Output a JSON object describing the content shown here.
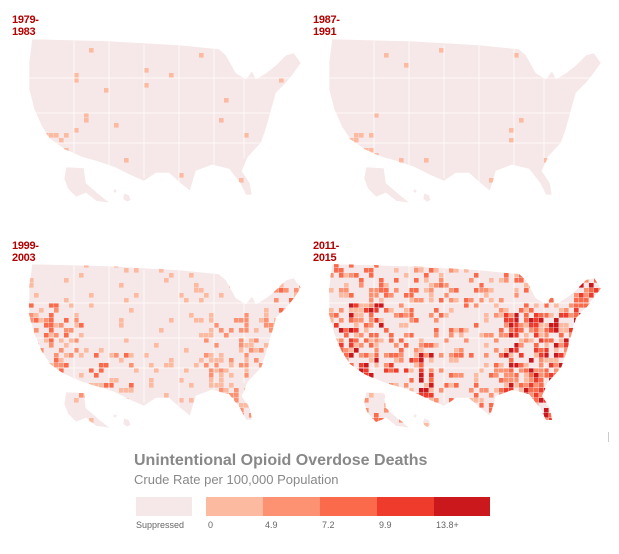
{
  "panels": [
    {
      "period": "1979-1983",
      "level": 0
    },
    {
      "period": "1987-1991",
      "level": 0
    },
    {
      "period": "1999-2003",
      "level": 1
    },
    {
      "period": "2011-2015",
      "level": 2
    }
  ],
  "legend": {
    "title": "Unintentional Opioid Overdose Deaths",
    "subtitle": "Crude Rate per 100,000 Population",
    "suppressed_label": "Suppressed",
    "classes": [
      {
        "label": "0",
        "color": "#fcbba1"
      },
      {
        "label": "4.9",
        "color": "#fc9272"
      },
      {
        "label": "7.2",
        "color": "#fb6a4a"
      },
      {
        "label": "9.9",
        "color": "#ef3b2c"
      },
      {
        "label": "13.8+",
        "color": "#cb181d"
      }
    ],
    "suppressed_color": "#f6e8e8"
  },
  "colors": {
    "base": "#f6e8e8",
    "border": "#ffffff",
    "title": "#b30000"
  }
}
